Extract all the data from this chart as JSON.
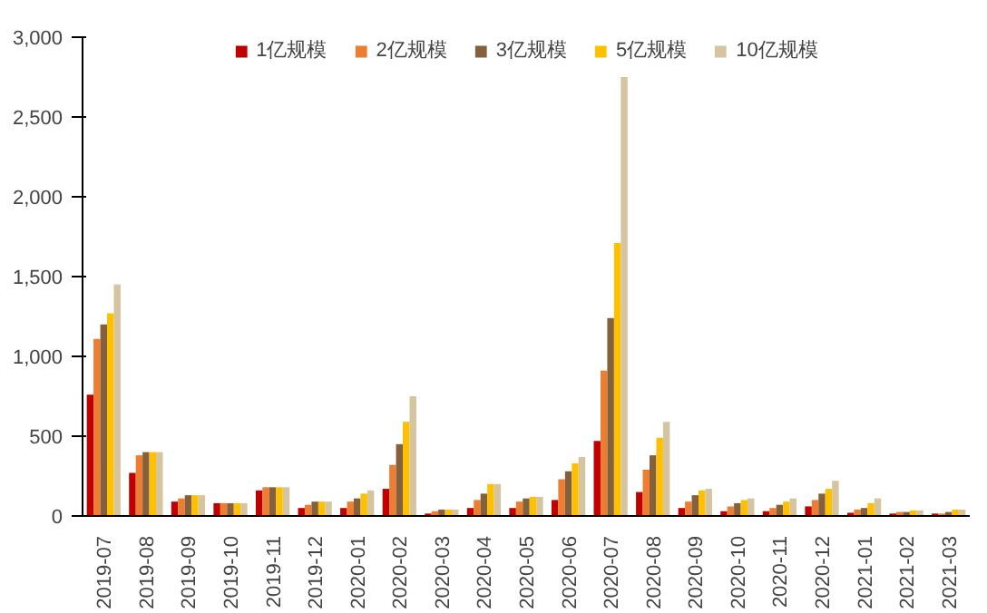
{
  "chart_data": {
    "type": "bar",
    "categories": [
      "2019-07",
      "2019-08",
      "2019-09",
      "2019-10",
      "2019-11",
      "2019-12",
      "2020-01",
      "2020-02",
      "2020-03",
      "2020-04",
      "2020-05",
      "2020-06",
      "2020-07",
      "2020-08",
      "2020-09",
      "2020-10",
      "2020-11",
      "2020-12",
      "2021-01",
      "2021-02",
      "2021-03"
    ],
    "series": [
      {
        "name": "1亿规模",
        "color": "#c00000",
        "values": [
          760,
          270,
          90,
          80,
          160,
          50,
          50,
          170,
          15,
          50,
          50,
          100,
          470,
          150,
          50,
          30,
          30,
          60,
          20,
          15,
          15
        ]
      },
      {
        "name": "2亿规模",
        "color": "#ed7d31",
        "values": [
          1110,
          380,
          110,
          80,
          180,
          70,
          90,
          320,
          30,
          100,
          90,
          230,
          910,
          290,
          90,
          60,
          50,
          100,
          40,
          25,
          15
        ]
      },
      {
        "name": "3亿规模",
        "color": "#84613c",
        "values": [
          1200,
          400,
          130,
          80,
          180,
          90,
          110,
          450,
          40,
          140,
          110,
          280,
          1240,
          380,
          130,
          80,
          70,
          140,
          50,
          25,
          25
        ]
      },
      {
        "name": "5亿规模",
        "color": "#ffc000",
        "values": [
          1270,
          400,
          130,
          80,
          180,
          90,
          140,
          590,
          40,
          200,
          120,
          330,
          1710,
          490,
          160,
          100,
          90,
          170,
          80,
          35,
          40
        ]
      },
      {
        "name": "10亿规模",
        "color": "#d4c4a0",
        "values": [
          1450,
          400,
          130,
          80,
          180,
          90,
          160,
          750,
          40,
          200,
          120,
          370,
          2750,
          590,
          170,
          110,
          110,
          220,
          110,
          35,
          40
        ]
      }
    ],
    "ylim": [
      0,
      3000
    ],
    "yticks": [
      {
        "value": 0,
        "label": "0"
      },
      {
        "value": 500,
        "label": "500"
      },
      {
        "value": 1000,
        "label": "1,000"
      },
      {
        "value": 1500,
        "label": "1,500"
      },
      {
        "value": 2000,
        "label": "2,000"
      },
      {
        "value": 2500,
        "label": "2,500"
      },
      {
        "value": 3000,
        "label": "3,000"
      }
    ],
    "grid": false,
    "legend": "top"
  }
}
